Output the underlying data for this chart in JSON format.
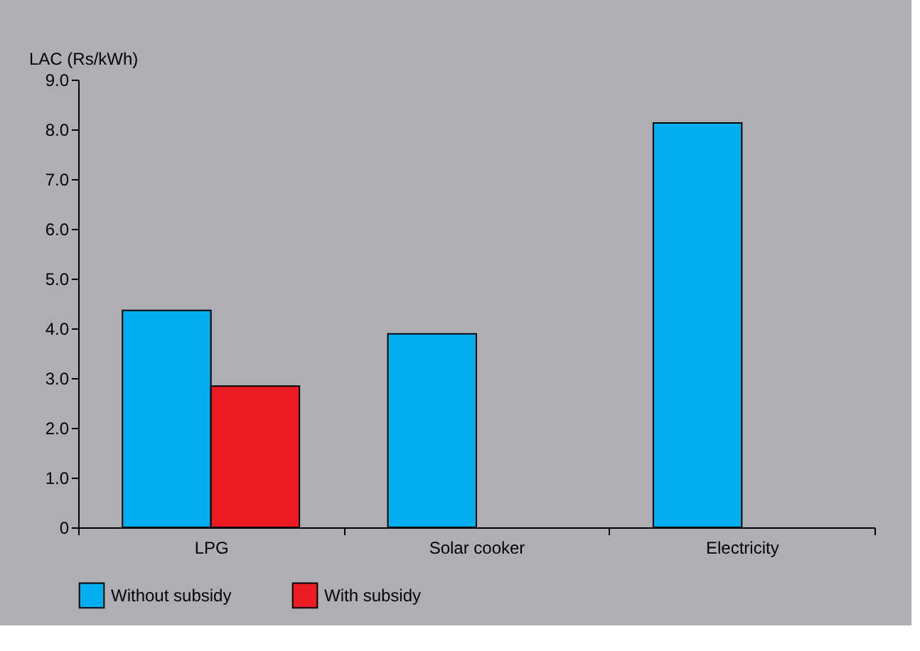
{
  "chart_data": {
    "type": "bar",
    "ylabel": "LAC (Rs/kWh)",
    "categories": [
      "LPG",
      "Solar cooker",
      "Electricity"
    ],
    "series": [
      {
        "name": "Without subsidy",
        "color": "#00adee",
        "values": [
          4.36,
          3.89,
          8.13
        ]
      },
      {
        "name": "With subsidy",
        "color": "#ed1c24",
        "values": [
          2.84,
          null,
          null
        ]
      }
    ],
    "ylim": [
      0,
      9
    ],
    "yticks": [
      0,
      {
        "value": 1,
        "label": "1.0"
      },
      {
        "value": 2,
        "label": "2.0"
      },
      {
        "value": 3,
        "label": "3.0"
      },
      {
        "value": 4,
        "label": "4.0"
      },
      {
        "value": 5,
        "label": "5.0"
      },
      {
        "value": 6,
        "label": "6.0"
      },
      {
        "value": 7,
        "label": "7.0"
      },
      {
        "value": 8,
        "label": "8.0"
      },
      {
        "value": 9,
        "label": "9.0"
      }
    ],
    "grid": false,
    "legend": "bottom"
  }
}
